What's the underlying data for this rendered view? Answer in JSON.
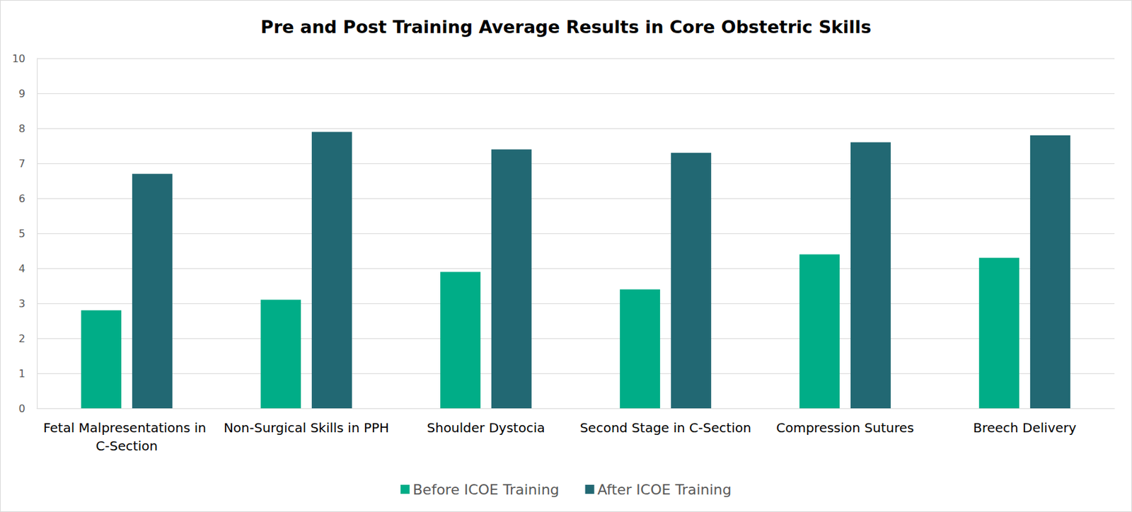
{
  "chart_data": {
    "type": "bar",
    "title": "Pre and Post Training Average Results in Core Obstetric Skills",
    "categories": [
      "Fetal Malpresentations in C-Section",
      "Non-Surgical Skills in PPH",
      "Shoulder Dystocia",
      "Second Stage in C-Section",
      "Compression Sutures",
      "Breech Delivery"
    ],
    "series": [
      {
        "name": "Before ICOE Training",
        "color": "#00ad87",
        "values": [
          2.8,
          3.1,
          3.9,
          3.4,
          4.4,
          4.3
        ]
      },
      {
        "name": "After ICOE Training",
        "color": "#226873",
        "values": [
          6.7,
          7.9,
          7.4,
          7.3,
          7.6,
          7.8
        ]
      }
    ],
    "ylim": [
      0,
      10
    ],
    "yticks": [
      0,
      1,
      2,
      3,
      4,
      5,
      6,
      7,
      8,
      9,
      10
    ],
    "grid": true,
    "legend": "bottom"
  }
}
